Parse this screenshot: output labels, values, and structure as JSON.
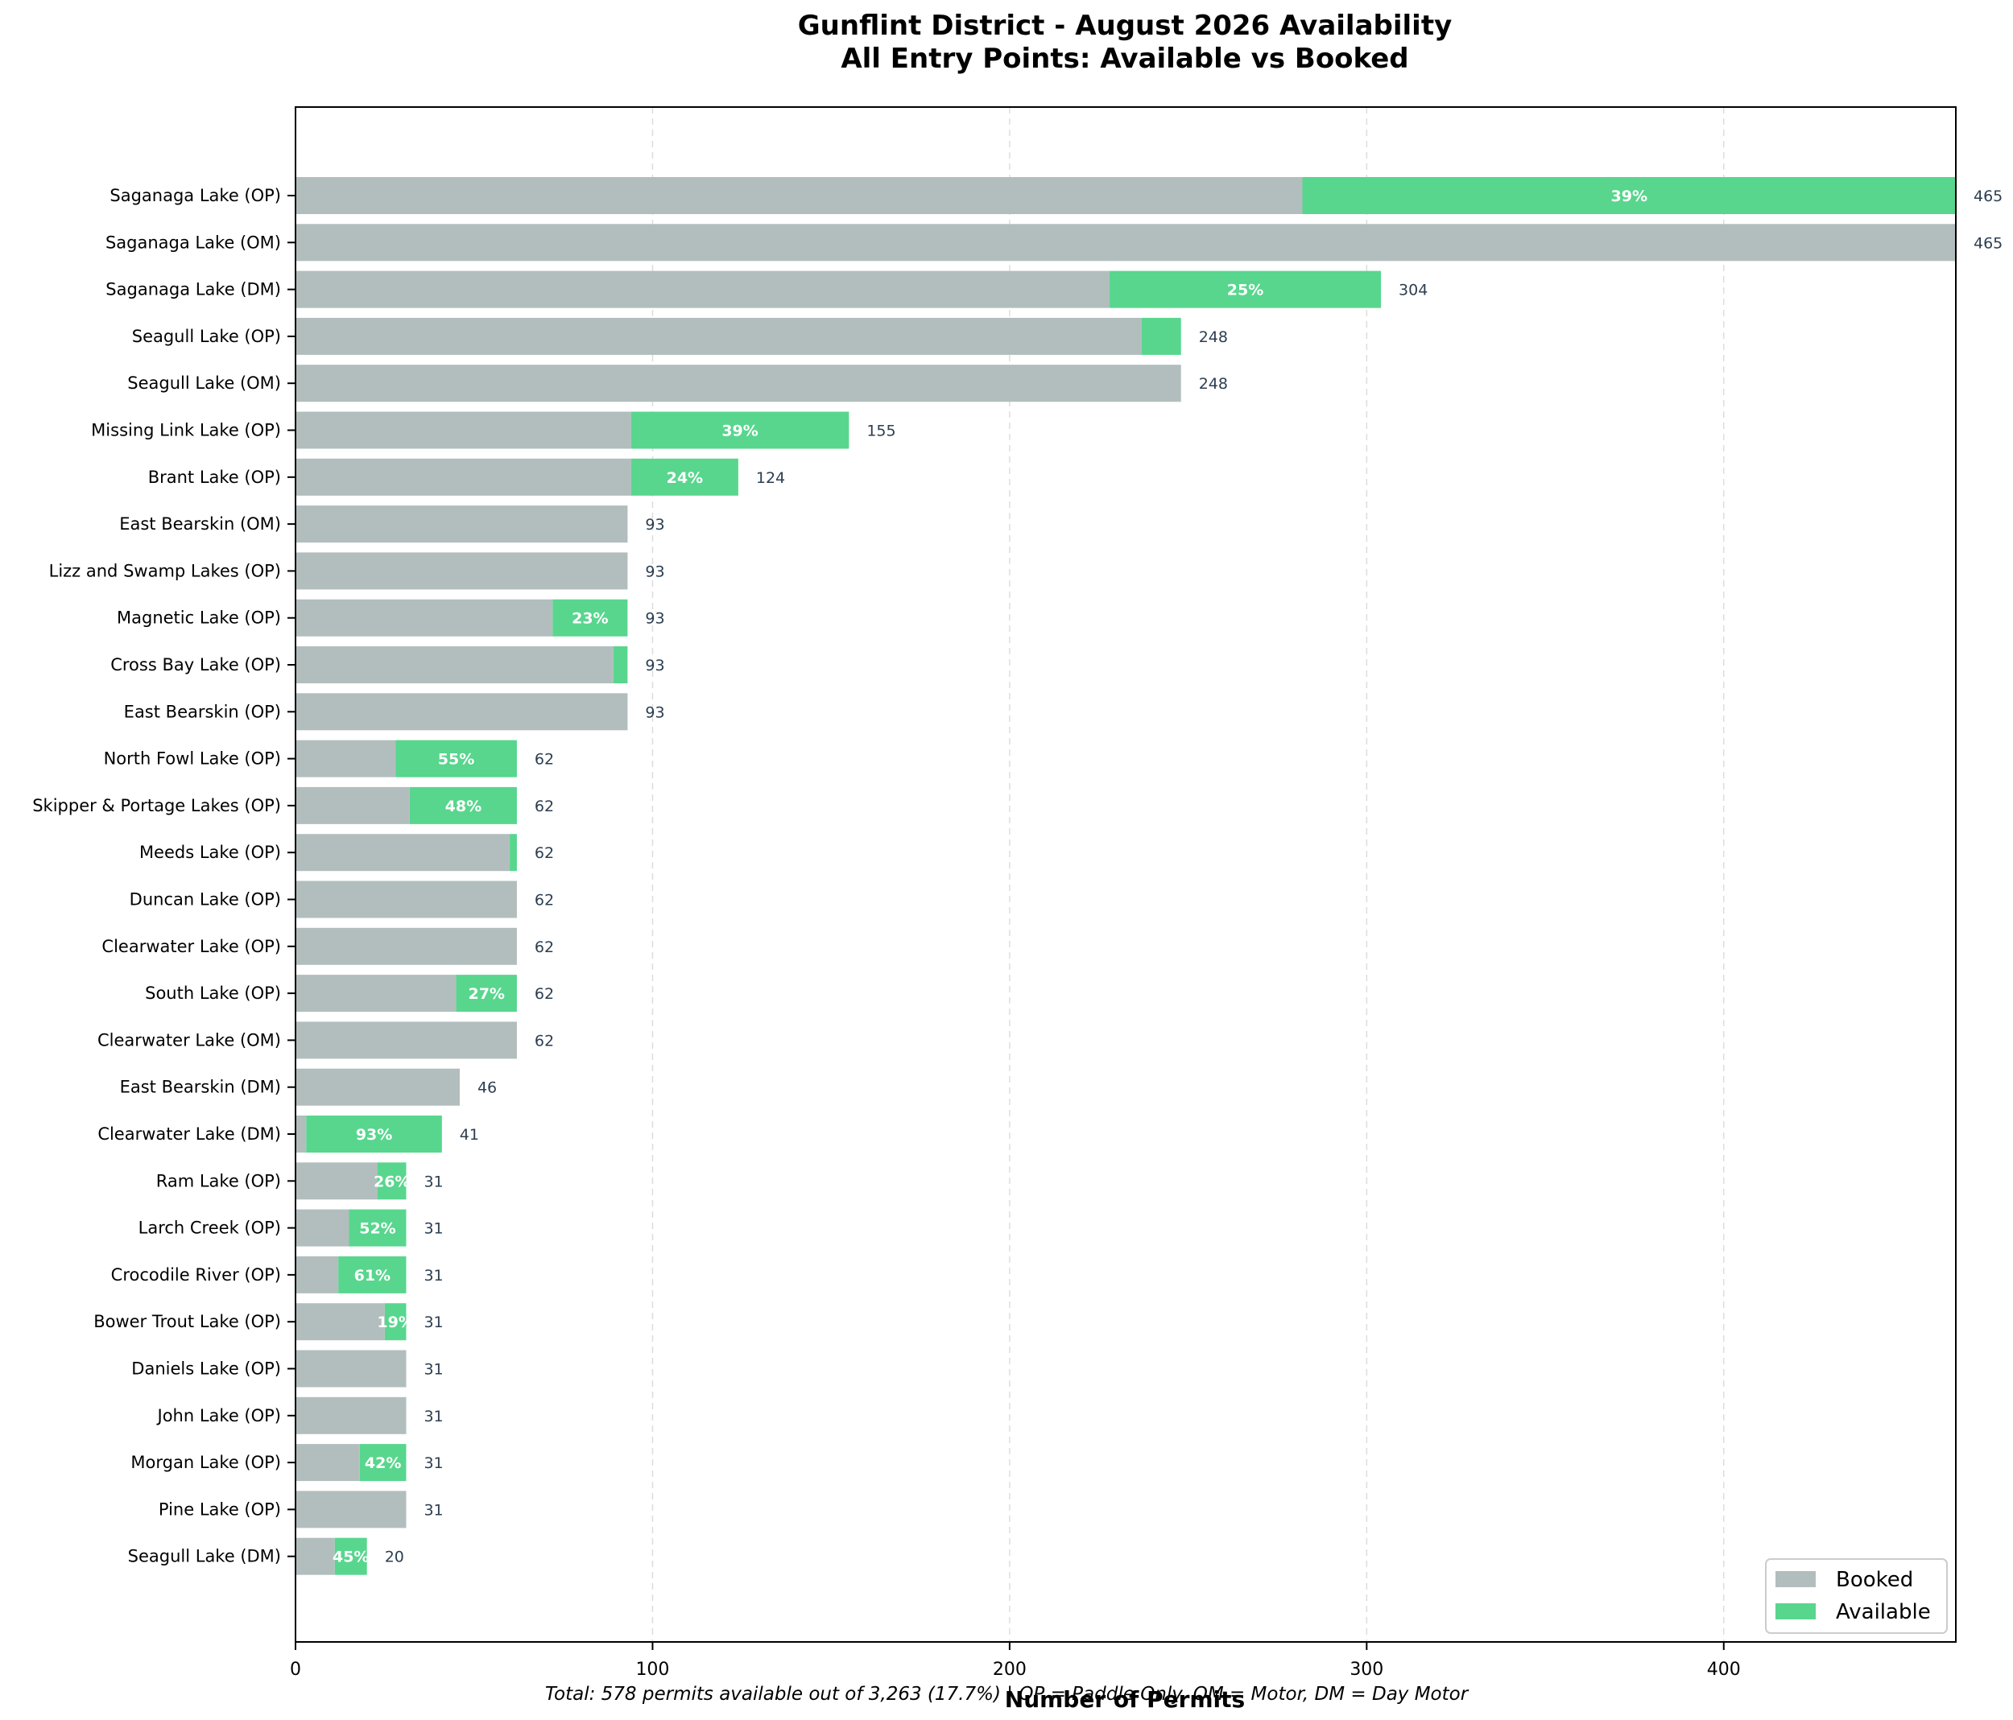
{
  "chart_data": {
    "type": "bar",
    "orientation": "horizontal",
    "stacked": true,
    "title": "Gunflint District - August 2026 Availability",
    "subtitle": "All Entry Points: Available vs Booked",
    "xlabel": "Number of Permits",
    "ylabel": "",
    "xlim": [
      0,
      465
    ],
    "xticks": [
      "0",
      "100",
      "200",
      "300",
      "400"
    ],
    "grid": "x-dashed",
    "legend_position": "bottom-right",
    "footer": "Total: 578 permits available out of 3,263 (17.7%) | OP = Paddle Only, OM = Motor, DM = Day Motor",
    "colors": {
      "booked": "#b2bebd",
      "available": "#58d68d",
      "total_label": "#2c3e50"
    },
    "series": [
      {
        "name": "Booked",
        "color": "#b2bebd"
      },
      {
        "name": "Available",
        "color": "#58d68d"
      }
    ],
    "entries": [
      {
        "label": "Saganaga Lake (OP)",
        "booked": 282,
        "available": 183,
        "total": "465",
        "pct": "39%"
      },
      {
        "label": "Saganaga Lake (OM)",
        "booked": 465,
        "available": 0,
        "total": "465",
        "pct": ""
      },
      {
        "label": "Saganaga Lake (DM)",
        "booked": 228,
        "available": 76,
        "total": "304",
        "pct": "25%"
      },
      {
        "label": "Seagull Lake (OP)",
        "booked": 237,
        "available": 11,
        "total": "248",
        "pct": ""
      },
      {
        "label": "Seagull Lake (OM)",
        "booked": 248,
        "available": 0,
        "total": "248",
        "pct": ""
      },
      {
        "label": "Missing Link Lake (OP)",
        "booked": 94,
        "available": 61,
        "total": "155",
        "pct": "39%"
      },
      {
        "label": "Brant Lake (OP)",
        "booked": 94,
        "available": 30,
        "total": "124",
        "pct": "24%"
      },
      {
        "label": "East Bearskin (OM)",
        "booked": 93,
        "available": 0,
        "total": "93",
        "pct": ""
      },
      {
        "label": "Lizz and Swamp Lakes (OP)",
        "booked": 93,
        "available": 0,
        "total": "93",
        "pct": ""
      },
      {
        "label": "Magnetic Lake (OP)",
        "booked": 72,
        "available": 21,
        "total": "93",
        "pct": "23%"
      },
      {
        "label": "Cross Bay Lake (OP)",
        "booked": 89,
        "available": 4,
        "total": "93",
        "pct": ""
      },
      {
        "label": "East Bearskin (OP)",
        "booked": 93,
        "available": 0,
        "total": "93",
        "pct": ""
      },
      {
        "label": "North Fowl Lake (OP)",
        "booked": 28,
        "available": 34,
        "total": "62",
        "pct": "55%"
      },
      {
        "label": "Skipper & Portage Lakes (OP)",
        "booked": 32,
        "available": 30,
        "total": "62",
        "pct": "48%"
      },
      {
        "label": "Meeds Lake (OP)",
        "booked": 60,
        "available": 2,
        "total": "62",
        "pct": ""
      },
      {
        "label": "Duncan Lake (OP)",
        "booked": 62,
        "available": 0,
        "total": "62",
        "pct": ""
      },
      {
        "label": "Clearwater Lake (OP)",
        "booked": 62,
        "available": 0,
        "total": "62",
        "pct": ""
      },
      {
        "label": "South Lake (OP)",
        "booked": 45,
        "available": 17,
        "total": "62",
        "pct": "27%"
      },
      {
        "label": "Clearwater Lake (OM)",
        "booked": 62,
        "available": 0,
        "total": "62",
        "pct": ""
      },
      {
        "label": "East Bearskin (DM)",
        "booked": 46,
        "available": 0,
        "total": "46",
        "pct": ""
      },
      {
        "label": "Clearwater Lake (DM)",
        "booked": 3,
        "available": 38,
        "total": "41",
        "pct": "93%"
      },
      {
        "label": "Ram Lake (OP)",
        "booked": 23,
        "available": 8,
        "total": "31",
        "pct": "26%"
      },
      {
        "label": "Larch Creek (OP)",
        "booked": 15,
        "available": 16,
        "total": "31",
        "pct": "52%"
      },
      {
        "label": "Crocodile River (OP)",
        "booked": 12,
        "available": 19,
        "total": "31",
        "pct": "61%"
      },
      {
        "label": "Bower Trout Lake (OP)",
        "booked": 25,
        "available": 6,
        "total": "31",
        "pct": "19%"
      },
      {
        "label": "Daniels Lake (OP)",
        "booked": 31,
        "available": 0,
        "total": "31",
        "pct": ""
      },
      {
        "label": "John Lake (OP)",
        "booked": 31,
        "available": 0,
        "total": "31",
        "pct": ""
      },
      {
        "label": "Morgan Lake (OP)",
        "booked": 18,
        "available": 13,
        "total": "31",
        "pct": "42%"
      },
      {
        "label": "Pine Lake (OP)",
        "booked": 31,
        "available": 0,
        "total": "31",
        "pct": ""
      },
      {
        "label": "Seagull Lake (DM)",
        "booked": 11,
        "available": 9,
        "total": "20",
        "pct": "45%"
      }
    ]
  }
}
